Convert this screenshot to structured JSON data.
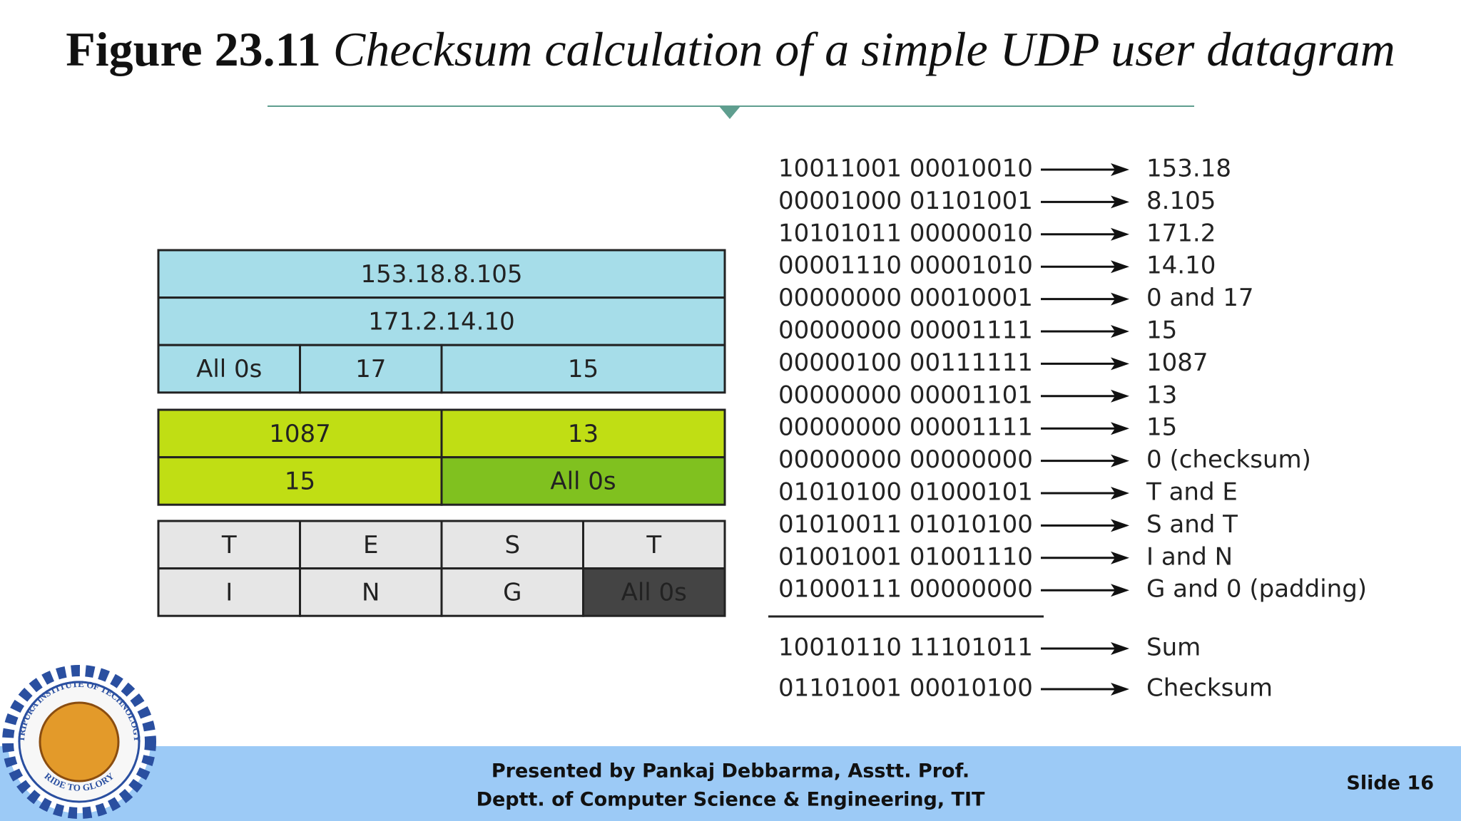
{
  "title": {
    "label": "Figure 23.11",
    "caption": "Checksum calculation of a simple UDP user datagram"
  },
  "datagram": {
    "pseudoheader": [
      [
        "153.18.8.105"
      ],
      [
        "171.2.14.10"
      ],
      [
        "All 0s",
        "17",
        "15"
      ]
    ],
    "header": [
      [
        "1087",
        "13"
      ],
      [
        "15",
        "All 0s"
      ]
    ],
    "data": [
      [
        "T",
        "E",
        "S",
        "T"
      ],
      [
        "I",
        "N",
        "G",
        "All 0s"
      ]
    ]
  },
  "calculation": {
    "rows": [
      {
        "bits": "10011001 00010010",
        "value": "153.18"
      },
      {
        "bits": "00001000 01101001",
        "value": "8.105"
      },
      {
        "bits": "10101011 00000010",
        "value": "171.2"
      },
      {
        "bits": "00001110 00001010",
        "value": "14.10"
      },
      {
        "bits": "00000000 00010001",
        "value": "0 and 17"
      },
      {
        "bits": "00000000 00001111",
        "value": "15"
      },
      {
        "bits": "00000100 00111111",
        "value": "1087"
      },
      {
        "bits": "00000000 00001101",
        "value": "13"
      },
      {
        "bits": "00000000 00001111",
        "value": "15"
      },
      {
        "bits": "00000000 00000000",
        "value": "0 (checksum)"
      },
      {
        "bits": "01010100 01000101",
        "value": "T and E"
      },
      {
        "bits": "01010011 01010100",
        "value": "S and T"
      },
      {
        "bits": "01001001 01001110",
        "value": "I and N"
      },
      {
        "bits": "01000111 00000000",
        "value": "G and 0 (padding)"
      }
    ],
    "sum": {
      "bits": "10010110 11101011",
      "value": "Sum"
    },
    "checksum": {
      "bits": "01101001 00010100",
      "value": "Checksum"
    }
  },
  "logo": {
    "top": "TRIPURA INSTITUTE OF TECHNOLOGY",
    "bottom": "RIDE TO GLORY"
  },
  "footer": {
    "lines": [
      "Presented by Pankaj Debbarma, Asstt. Prof.",
      "Deptt. of Computer Science & Engineering, TIT"
    ],
    "slide": "Slide 16"
  }
}
